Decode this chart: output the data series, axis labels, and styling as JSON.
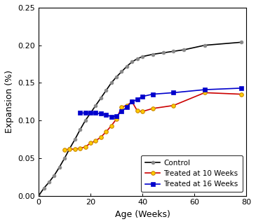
{
  "control_x": [
    0,
    2,
    4,
    6,
    8,
    10,
    12,
    14,
    16,
    18,
    20,
    22,
    24,
    26,
    28,
    30,
    32,
    34,
    36,
    38,
    40,
    44,
    48,
    52,
    56,
    64,
    78
  ],
  "control_y": [
    0.0,
    0.01,
    0.018,
    0.027,
    0.038,
    0.05,
    0.063,
    0.075,
    0.088,
    0.1,
    0.11,
    0.12,
    0.13,
    0.14,
    0.15,
    0.158,
    0.165,
    0.172,
    0.178,
    0.182,
    0.185,
    0.188,
    0.19,
    0.192,
    0.194,
    0.2,
    0.204
  ],
  "treated10_x": [
    10,
    12,
    14,
    16,
    18,
    20,
    22,
    24,
    26,
    28,
    30,
    32,
    34,
    36,
    38,
    40,
    44,
    52,
    64,
    78
  ],
  "treated10_y": [
    0.061,
    0.062,
    0.062,
    0.063,
    0.065,
    0.07,
    0.073,
    0.078,
    0.085,
    0.093,
    0.102,
    0.118,
    0.12,
    0.125,
    0.113,
    0.112,
    0.116,
    0.12,
    0.137,
    0.135
  ],
  "treated16_x": [
    16,
    18,
    20,
    22,
    24,
    26,
    28,
    30,
    32,
    34,
    36,
    38,
    40,
    44,
    52,
    64,
    78
  ],
  "treated16_y": [
    0.11,
    0.11,
    0.11,
    0.11,
    0.109,
    0.108,
    0.105,
    0.106,
    0.112,
    0.118,
    0.125,
    0.128,
    0.132,
    0.135,
    0.137,
    0.141,
    0.143
  ],
  "control_line_color": "#000000",
  "control_marker_color": "#888888",
  "treated10_line_color": "#cc0000",
  "treated10_marker_facecolor": "#ffcc00",
  "treated10_marker_edgecolor": "#cc8800",
  "treated16_line_color": "#0000cc",
  "treated16_marker_color": "#0000cc",
  "xlabel": "Age (Weeks)",
  "ylabel": "Expansion (%)",
  "xlim": [
    0,
    80
  ],
  "ylim": [
    0.0,
    0.25
  ],
  "xticks": [
    0,
    20,
    40,
    60,
    80
  ],
  "yticks": [
    0.0,
    0.05,
    0.1,
    0.15,
    0.2,
    0.25
  ],
  "legend_control": "Control",
  "legend_treated10": "Treated at 10 Weeks",
  "legend_treated16": "Treated at 16 Weeks",
  "background_color": "#ffffff",
  "tick_fontsize": 8,
  "label_fontsize": 9,
  "legend_fontsize": 7.5
}
